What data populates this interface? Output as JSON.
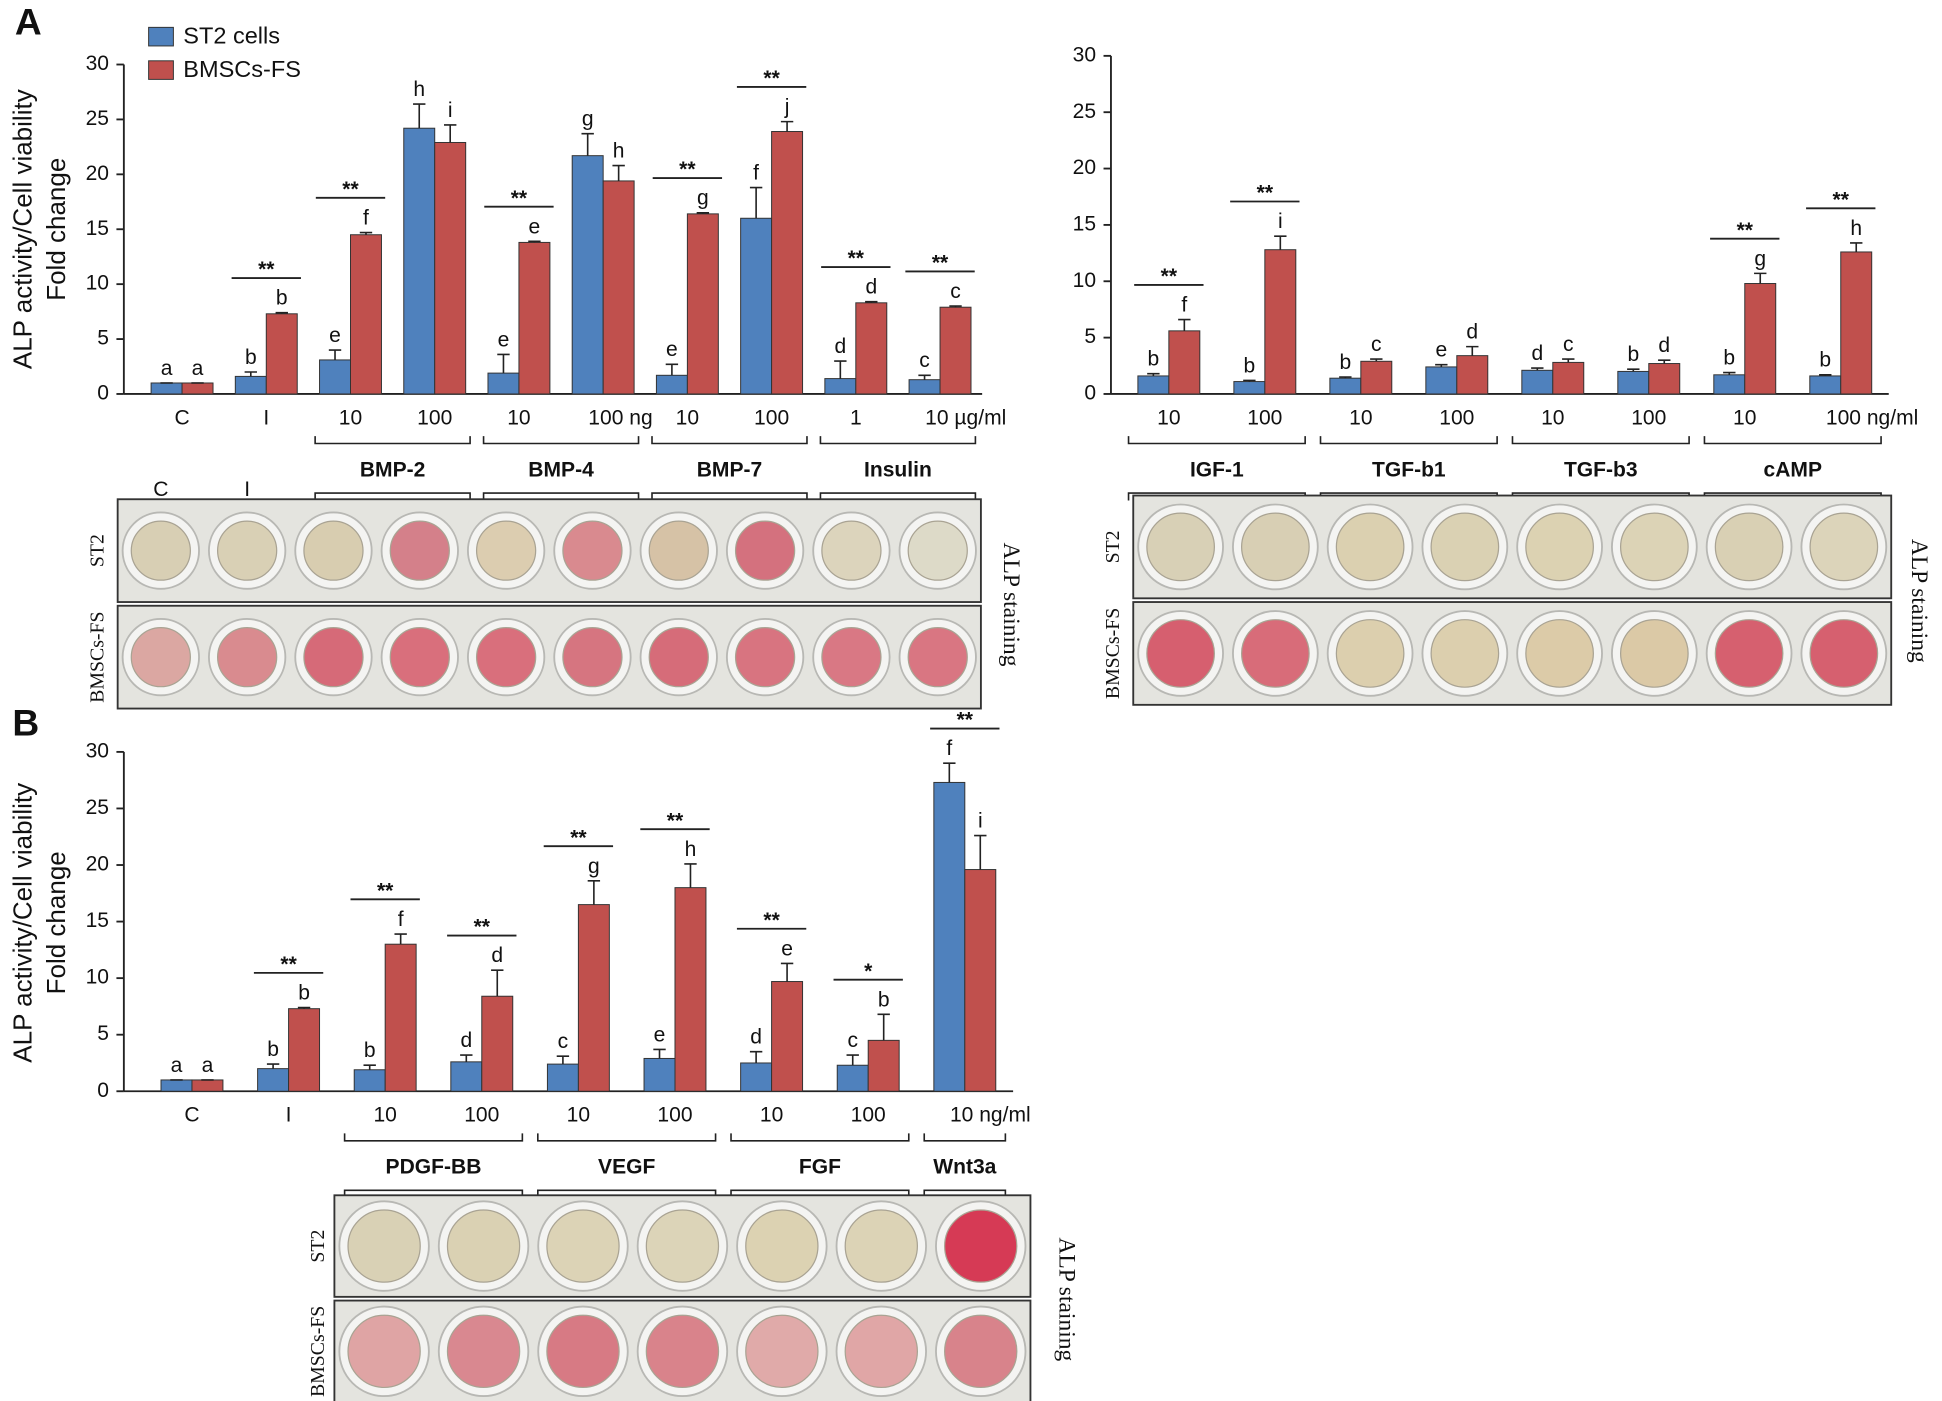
{
  "chart_data": [
    {
      "type": "bar",
      "panel": "A",
      "ylabel": [
        "ALP activity/Cell viability",
        "Fold change"
      ],
      "categories": [
        "C",
        "I",
        "10",
        "100",
        "10",
        "100 ng",
        "10",
        "100",
        "1",
        "10 µg/ml"
      ],
      "series": [
        {
          "name": "ST2 cells",
          "color": "#4f81bd",
          "values": [
            1.0,
            1.6,
            3.1,
            24.2,
            1.9,
            21.7,
            1.7,
            16.0,
            1.4,
            1.3
          ],
          "errors": [
            0,
            0.4,
            0.9,
            2.2,
            1.7,
            2.0,
            1.0,
            2.8,
            1.6,
            0.4
          ],
          "letters": [
            "a",
            "b",
            "e",
            "h",
            "e",
            "g",
            "e",
            "f",
            "d",
            "c"
          ]
        },
        {
          "name": "BMSCs-FS",
          "color": "#c0504d",
          "values": [
            1.0,
            7.3,
            14.5,
            22.9,
            13.8,
            19.4,
            16.4,
            23.9,
            8.3,
            7.9
          ],
          "errors": [
            0,
            0.1,
            0.2,
            1.6,
            0.1,
            1.4,
            0.1,
            0.9,
            0.1,
            0.1
          ],
          "letters": [
            "a",
            "b",
            "f",
            "i",
            "e",
            "h",
            "g",
            "j",
            "d",
            "c"
          ]
        }
      ],
      "significance": [
        null,
        "**",
        "**",
        null,
        "**",
        null,
        "**",
        "**",
        "**",
        "**"
      ],
      "groups": [
        {
          "label": "BMP-2",
          "start": 2,
          "end": 3
        },
        {
          "label": "BMP-4",
          "start": 4,
          "end": 5
        },
        {
          "label": "BMP-7",
          "start": 6,
          "end": 7
        },
        {
          "label": "Insulin",
          "start": 8,
          "end": 9
        }
      ],
      "ylim": [
        0,
        30
      ],
      "yticks": [
        0,
        5,
        10,
        15,
        20,
        25,
        30
      ],
      "staining": {
        "label": "ALP staining",
        "top_labels": [
          "C",
          "I"
        ],
        "rows": [
          {
            "name": "ST2",
            "colors": [
              "#d8cfb4",
              "#d9d0b5",
              "#d8cdb0",
              "#d4808a",
              "#dccdb0",
              "#d98a8f",
              "#d6c2a6",
              "#d4717e",
              "#dcd4bc",
              "#dddac8"
            ]
          },
          {
            "name": "BMSCs-FS",
            "colors": [
              "#dba7a2",
              "#d98b8f",
              "#d66a78",
              "#d96f7c",
              "#d96f7c",
              "#d67580",
              "#d66c79",
              "#d87480",
              "#d97884",
              "#d97682"
            ]
          }
        ]
      }
    },
    {
      "type": "bar",
      "categories": [
        "10",
        "100",
        "10",
        "100",
        "10",
        "100",
        "10",
        "100 ng/ml"
      ],
      "series": [
        {
          "color": "#4f81bd",
          "values": [
            1.6,
            1.1,
            1.4,
            2.4,
            2.1,
            2.0,
            1.7,
            1.6
          ],
          "errors": [
            0.2,
            0.1,
            0.1,
            0.2,
            0.2,
            0.2,
            0.2,
            0.1
          ],
          "letters": [
            "b",
            "b",
            "b",
            "e",
            "d",
            "b",
            "b",
            "b"
          ]
        },
        {
          "color": "#c0504d",
          "values": [
            5.6,
            12.8,
            2.9,
            3.4,
            2.8,
            2.7,
            9.8,
            12.6
          ],
          "errors": [
            1.0,
            1.2,
            0.2,
            0.8,
            0.3,
            0.3,
            0.9,
            0.8
          ],
          "letters": [
            "f",
            "i",
            "c",
            "d",
            "c",
            "d",
            "g",
            "h"
          ]
        }
      ],
      "significance": [
        "**",
        "**",
        null,
        null,
        null,
        null,
        "**",
        "**"
      ],
      "groups": [
        {
          "label": "IGF-1",
          "start": 0,
          "end": 1
        },
        {
          "label": "TGF-b1",
          "start": 2,
          "end": 3
        },
        {
          "label": "TGF-b3",
          "start": 4,
          "end": 5
        },
        {
          "label": "cAMP",
          "start": 6,
          "end": 7
        }
      ],
      "ylim": [
        0,
        30
      ],
      "yticks": [
        0,
        5,
        10,
        15,
        20,
        25,
        30
      ],
      "staining": {
        "label": "ALP staining",
        "rows": [
          {
            "name": "ST2",
            "colors": [
              "#d8d0b6",
              "#d8cfb4",
              "#dbd0b0",
              "#dad1b3",
              "#dcd2b2",
              "#dcd3b6",
              "#d9d0b4",
              "#dcd4ba"
            ]
          },
          {
            "name": "BMSCs-FS",
            "colors": [
              "#d65f6f",
              "#d86c79",
              "#dccfae",
              "#dccfae",
              "#dccba8",
              "#dbc9a6",
              "#d6606f",
              "#d6606f"
            ]
          }
        ]
      }
    },
    {
      "type": "bar",
      "panel": "B",
      "ylabel": [
        "ALP activity/Cell viability",
        "Fold change"
      ],
      "categories": [
        "C",
        "I",
        "10",
        "100",
        "10",
        "100",
        "10",
        "100",
        "10 ng/ml"
      ],
      "series": [
        {
          "color": "#4f81bd",
          "values": [
            1.0,
            2.0,
            1.9,
            2.6,
            2.4,
            2.9,
            2.5,
            2.3,
            27.3
          ],
          "errors": [
            0,
            0.4,
            0.4,
            0.6,
            0.7,
            0.8,
            1.0,
            0.9,
            1.7
          ],
          "letters": [
            "a",
            "b",
            "b",
            "d",
            "c",
            "e",
            "d",
            "c",
            "f"
          ]
        },
        {
          "color": "#c0504d",
          "values": [
            1.0,
            7.3,
            13.0,
            8.4,
            16.5,
            18.0,
            9.7,
            4.5,
            19.6
          ],
          "errors": [
            0,
            0.1,
            0.9,
            2.3,
            2.1,
            2.1,
            1.6,
            2.3,
            3.0
          ],
          "letters": [
            "a",
            "b",
            "f",
            "d",
            "g",
            "h",
            "e",
            "b",
            "i"
          ]
        }
      ],
      "significance": [
        null,
        "**",
        "**",
        "**",
        "**",
        "**",
        "**",
        "*",
        "**"
      ],
      "groups": [
        {
          "label": "PDGF-BB",
          "start": 2,
          "end": 3
        },
        {
          "label": "VEGF",
          "start": 4,
          "end": 5
        },
        {
          "label": "FGF",
          "start": 6,
          "end": 7
        },
        {
          "label": "Wnt3a",
          "start": 8,
          "end": 8
        }
      ],
      "ylim": [
        0,
        30
      ],
      "yticks": [
        0,
        5,
        10,
        15,
        20,
        25,
        30
      ],
      "staining": {
        "label": "ALP staining",
        "rows": [
          {
            "name": "ST2",
            "colors": [
              "#d9d1b5",
              "#dad1b3",
              "#dcd3b6",
              "#dcd4b8",
              "#dcd2b2",
              "#dcd3b6",
              "#d63a55"
            ]
          },
          {
            "name": "BMSCs-FS",
            "colors": [
              "#dfa4a4",
              "#d98890",
              "#d77a84",
              "#d9838b",
              "#e0aaa9",
              "#e0a6a6",
              "#d8838b"
            ]
          }
        ]
      }
    }
  ]
}
